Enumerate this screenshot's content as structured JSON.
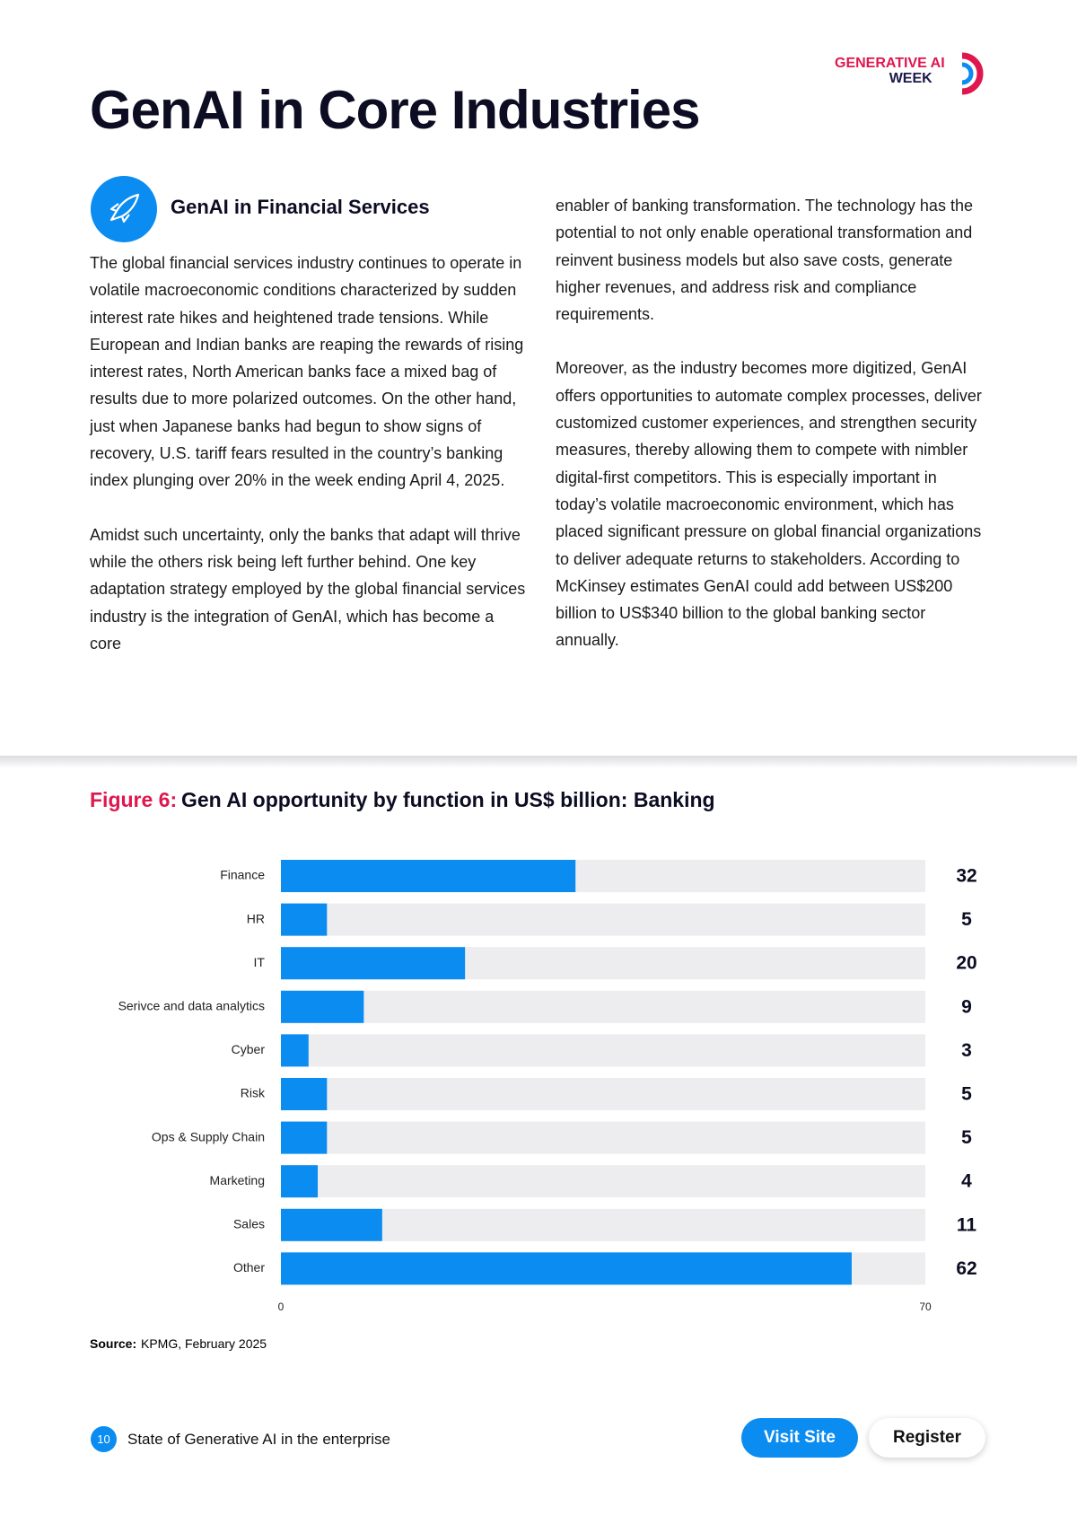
{
  "header": {
    "title": "GenAI in Core Industries",
    "logo_line1": "GENERATIVE AI",
    "logo_line2": "WEEK"
  },
  "article": {
    "heading": "GenAI in Financial Services",
    "left_column": [
      "The global financial services industry continues to operate in volatile macroeconomic conditions characterized by sudden interest rate hikes and heightened trade tensions. While European and Indian banks are reaping the rewards of rising interest rates, North American banks face a mixed bag of results due to more polarized outcomes. On the other hand, just when Japanese banks had begun to show signs of recovery, U.S. tariff fears resulted in the country’s banking index plunging over 20% in the week ending April 4, 2025.",
      "Amidst such uncertainty, only the banks that adapt will thrive while the others risk being left further behind. One key adaptation strategy employed by the global financial services industry is the integration of GenAI, which has become a core"
    ],
    "right_column": [
      "enabler of banking transformation. The technology has the potential to not only enable operational transformation and reinvent business models but also save costs, generate higher revenues, and address risk and compliance requirements.",
      "Moreover, as the industry becomes more digitized, GenAI offers opportunities to automate complex processes, deliver customized customer experiences, and strengthen security measures, thereby allowing them to compete with nimbler digital-first competitors. This is especially important in today’s volatile macroeconomic environment, which has placed significant pressure on global financial organizations to deliver adequate returns to stakeholders. According to McKinsey estimates GenAI could add between US$200 billion to US$340 billion to the global banking sector annually."
    ]
  },
  "chart_data": {
    "type": "bar",
    "orientation": "horizontal",
    "figure_label": "Figure 6:",
    "title": "Gen AI opportunity by function in US$ billion: Banking",
    "categories": [
      "Finance",
      "HR",
      "IT",
      "Serivce and data analytics",
      "Cyber",
      "Risk",
      "Ops & Supply Chain",
      "Marketing",
      "Sales",
      "Other"
    ],
    "values": [
      32,
      5,
      20,
      9,
      3,
      5,
      5,
      4,
      11,
      62
    ],
    "color": "#0a8cf0",
    "xlim": [
      0,
      70
    ],
    "xticks": [
      0,
      70
    ],
    "source_label": "Source:",
    "source": "KPMG, February 2025"
  },
  "footer": {
    "page_number": "10",
    "text": "State of Generative AI in the enterprise",
    "button_primary": "Visit Site",
    "button_secondary": "Register"
  }
}
